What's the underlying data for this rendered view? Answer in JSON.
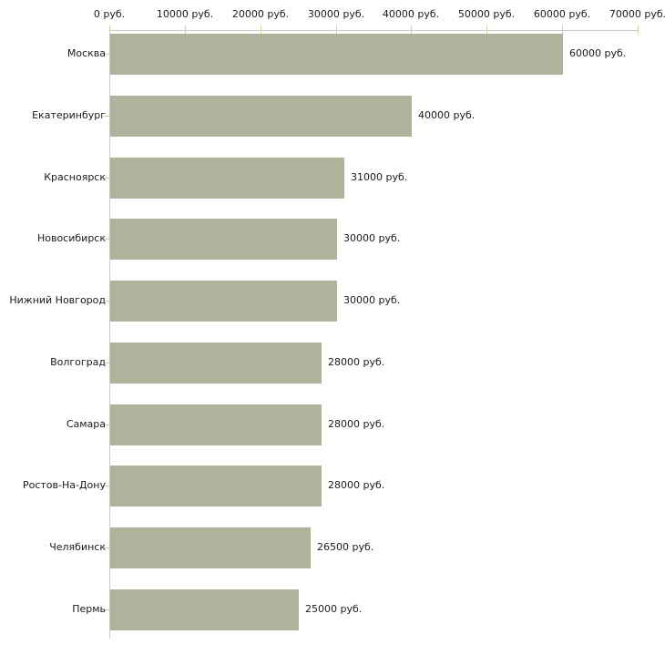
{
  "chart_data": {
    "type": "bar",
    "orientation": "horizontal",
    "categories": [
      "Москва",
      "Екатеринбург",
      "Красноярск",
      "Новосибирск",
      "Нижний Новгород",
      "Волгоград",
      "Самара",
      "Ростов-На-Дону",
      "Челябинск",
      "Пермь"
    ],
    "values": [
      60000,
      40000,
      31000,
      30000,
      30000,
      28000,
      28000,
      28000,
      26500,
      25000
    ],
    "bar_value_labels": [
      "60000 руб.",
      "40000 руб.",
      "31000 руб.",
      "30000 руб.",
      "30000 руб.",
      "28000 руб.",
      "28000 руб.",
      "28000 руб.",
      "26500 руб.",
      "25000 руб."
    ],
    "x_axis": {
      "position": "top",
      "min": 0,
      "max": 70000,
      "ticks": [
        0,
        10000,
        20000,
        30000,
        40000,
        50000,
        60000,
        70000
      ],
      "tick_labels": [
        "0 руб.",
        "10000 руб.",
        "20000 руб.",
        "30000 руб.",
        "40000 руб.",
        "50000 руб.",
        "60000 руб.",
        "70000 руб."
      ]
    },
    "unit": "руб.",
    "legend": false,
    "grid": false,
    "colors": {
      "bar": "#aeb49b",
      "axis_line": "#c8c8c8",
      "tick_mark": "#ccd2a4",
      "text": "#1a1a1a",
      "background": "#ffffff"
    }
  }
}
